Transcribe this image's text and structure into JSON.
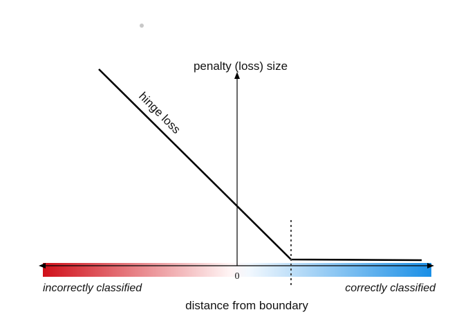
{
  "diagram": {
    "y_axis_label": "penalty (loss) size",
    "curve_label": "hinge loss",
    "origin_label": "0",
    "x_axis_label": "distance from boundary",
    "left_label": "incorrectly classified",
    "right_label": "correctly classified",
    "colors": {
      "incorrect": "#d0101a",
      "correct": "#1a8fe6",
      "line": "#000000",
      "dot": "#c8c8c8"
    }
  }
}
